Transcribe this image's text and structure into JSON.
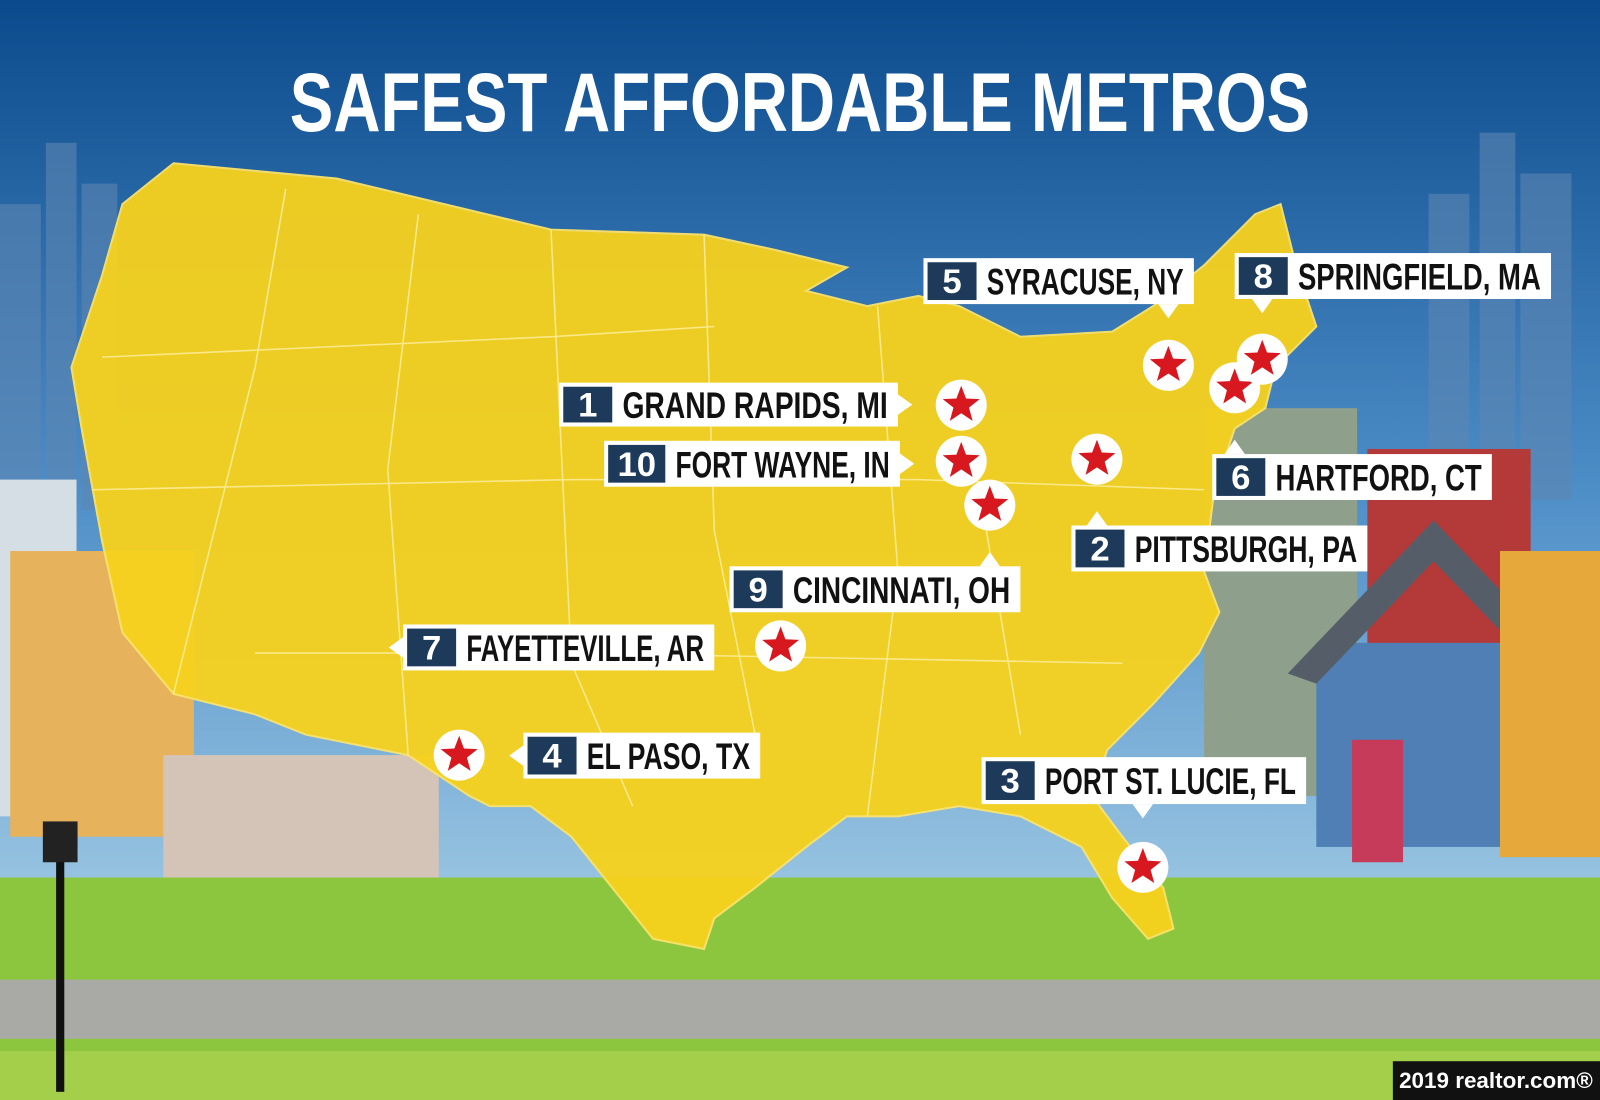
{
  "title": "SAFEST AFFORDABLE METROS",
  "metros": [
    {
      "rank": 1,
      "name": "GRAND RAPIDS, MI"
    },
    {
      "rank": 2,
      "name": "PITTSBURGH, PA"
    },
    {
      "rank": 3,
      "name": "PORT ST. LUCIE, FL"
    },
    {
      "rank": 4,
      "name": "EL PASO, TX"
    },
    {
      "rank": 5,
      "name": "SYRACUSE, NY"
    },
    {
      "rank": 6,
      "name": "HARTFORD, CT"
    },
    {
      "rank": 7,
      "name": "FAYETTEVILLE, AR"
    },
    {
      "rank": 8,
      "name": "SPRINGFIELD, MA"
    },
    {
      "rank": 9,
      "name": "CINCINNATI, OH"
    },
    {
      "rank": 10,
      "name": "FORT WAYNE, IN"
    }
  ],
  "credit": "2019 realtor.com®"
}
